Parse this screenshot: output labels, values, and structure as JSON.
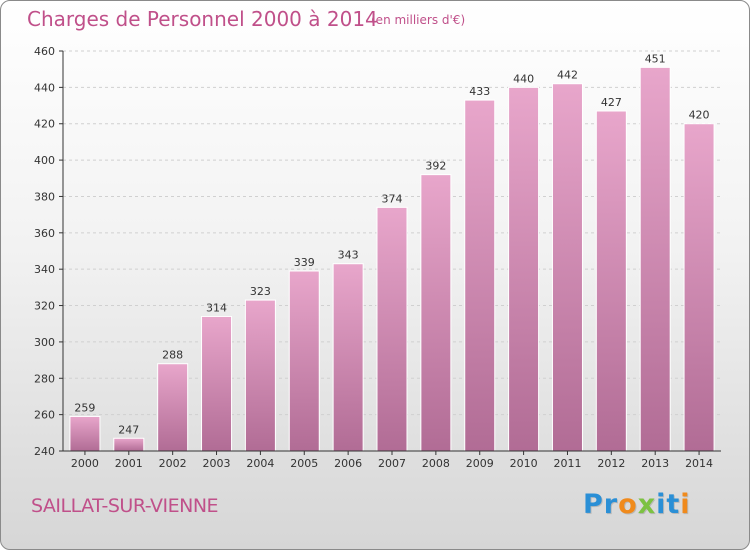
{
  "header": {
    "title": "Charges de Personnel 2000 à 2014",
    "subtitle": "(en milliers d'€)"
  },
  "footer": {
    "commune": "SAILLAT-SUR-VIENNE",
    "logo_letters": [
      "P",
      "r",
      "o",
      "x",
      "i",
      "t",
      "i"
    ],
    "logo_colors": [
      "#2a8fd6",
      "#2a8fd6",
      "#f08a1c",
      "#7cc242",
      "#2a8fd6",
      "#2a8fd6",
      "#f08a1c"
    ]
  },
  "colors": {
    "accent": "#c0508a",
    "bar_top": "#e8a6cb",
    "bar_bottom": "#b16c95",
    "axis": "#333333"
  },
  "chart_data": {
    "type": "bar",
    "title": "Charges de Personnel 2000 à 2014",
    "subtitle": "(en milliers d'€)",
    "categories": [
      "2000",
      "2001",
      "2002",
      "2003",
      "2004",
      "2005",
      "2006",
      "2007",
      "2008",
      "2009",
      "2010",
      "2011",
      "2012",
      "2013",
      "2014"
    ],
    "values": [
      259,
      247,
      288,
      314,
      323,
      339,
      343,
      374,
      392,
      433,
      440,
      442,
      427,
      451,
      420
    ],
    "ylim": [
      240,
      460
    ],
    "yticks": [
      240,
      260,
      280,
      300,
      320,
      340,
      360,
      380,
      400,
      420,
      440,
      460
    ],
    "grid": true,
    "legend": "none"
  }
}
